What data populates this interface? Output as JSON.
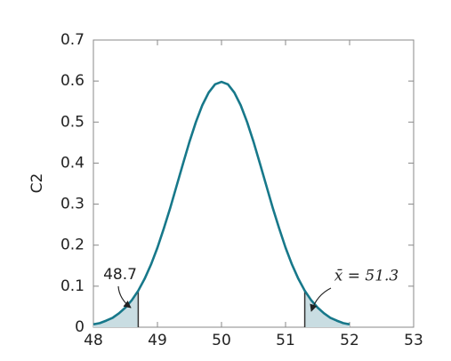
{
  "chart_data": {
    "type": "line",
    "ylabel": "C2",
    "x": [
      48,
      48.1,
      48.2,
      48.3,
      48.4,
      48.5,
      48.6,
      48.7,
      48.8,
      48.9,
      49,
      49.1,
      49.2,
      49.3,
      49.4,
      49.5,
      49.6,
      49.7,
      49.8,
      49.9,
      50,
      50.1,
      50.2,
      50.3,
      50.4,
      50.5,
      50.6,
      50.7,
      50.8,
      50.9,
      51,
      51.1,
      51.2,
      51.3,
      51.4,
      51.5,
      51.6,
      51.7,
      51.8,
      51.9,
      52
    ],
    "series": [
      {
        "color": "#17788a",
        "values": [
          0.007,
          0.01,
          0.016,
          0.023,
          0.034,
          0.048,
          0.066,
          0.089,
          0.118,
          0.153,
          0.194,
          0.241,
          0.291,
          0.345,
          0.399,
          0.452,
          0.5,
          0.541,
          0.572,
          0.592,
          0.598,
          0.592,
          0.572,
          0.541,
          0.5,
          0.452,
          0.399,
          0.345,
          0.291,
          0.241,
          0.194,
          0.153,
          0.118,
          0.089,
          0.066,
          0.048,
          0.034,
          0.023,
          0.016,
          0.01,
          0.007
        ]
      }
    ],
    "shaded_below": 48.7,
    "shaded_above": 51.3,
    "shade_color": "#c9dde2",
    "annotations": [
      "48.7",
      "x̄ = 51.3"
    ],
    "xlim": [
      48,
      53
    ],
    "xticks": [
      48,
      49,
      50,
      51,
      52,
      53
    ],
    "ylim": [
      0,
      0.7
    ],
    "yticks": [
      0,
      0.1,
      0.2,
      0.3,
      0.4,
      0.5,
      0.6,
      0.7
    ]
  }
}
